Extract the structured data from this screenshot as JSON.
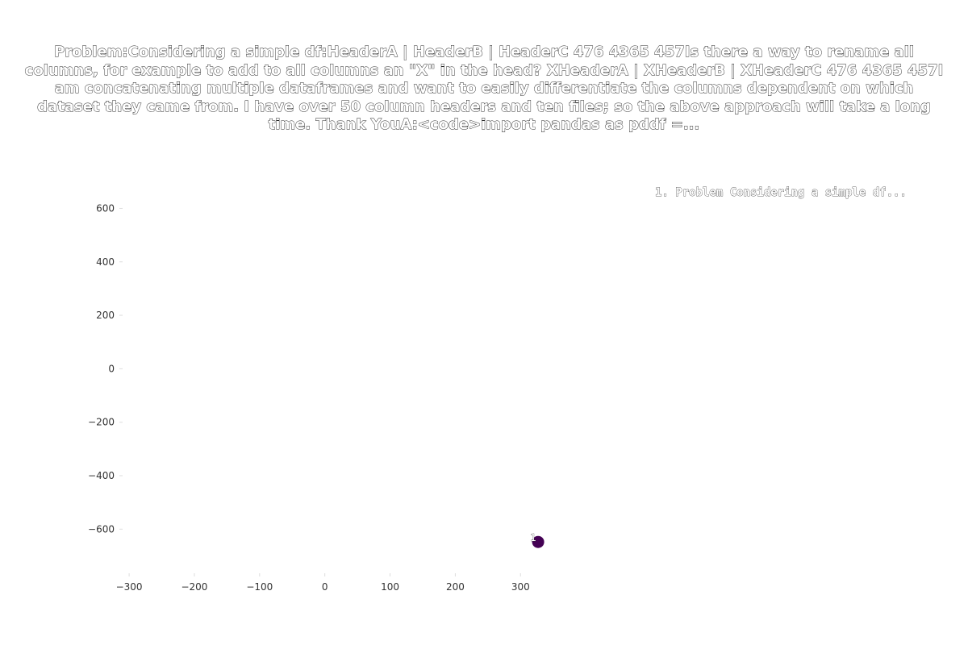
{
  "chart_data": {
    "type": "scatter",
    "title": "Problem:Considering a simple df:HeaderA | HeaderB | HeaderC      476      4365      457Is there a way to rename all columns, for example to add to all columns an \"X\" in the head? XHeaderA | XHeaderB | XHeaderC    476      4365      457I am concatenating multiple dataframes and want to easily differentiate the columns dependent on which dataset they came from. I have over 50 column headers and ten files; so the above approach will take a long time. Thank YouA:<code>import pandas as pddf =...",
    "xlabel": "",
    "ylabel": "",
    "xlim": [
      -310,
      385
    ],
    "ylim": [
      -765,
      710
    ],
    "x_ticks": [
      -300,
      -200,
      -100,
      0,
      100,
      200,
      300
    ],
    "x_tick_labels": [
      "−300",
      "−200",
      "−100",
      "0",
      "100",
      "200",
      "300"
    ],
    "y_ticks": [
      600,
      400,
      200,
      0,
      -200,
      -400,
      -600
    ],
    "y_tick_labels": [
      "600",
      "400",
      "200",
      "0",
      "−200",
      "−400",
      "−600"
    ],
    "grid": false,
    "legend_position": "top-right",
    "legend": [
      "1. Problem Considering a simple df..."
    ],
    "points": [
      {
        "x": 327,
        "y": -648,
        "label": "1",
        "color": "#440154"
      }
    ]
  }
}
